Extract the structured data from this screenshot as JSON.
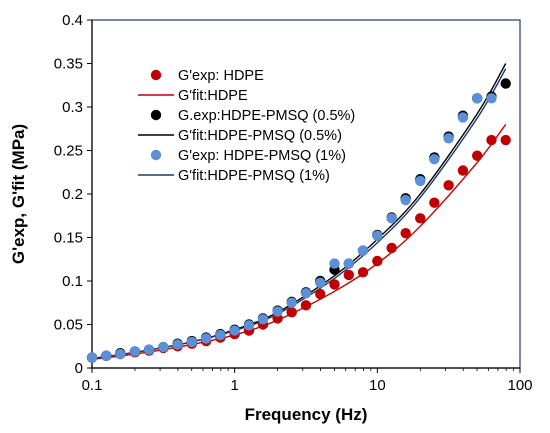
{
  "chart_data": {
    "type": "scatter",
    "title": "",
    "xlabel": "Frequency (Hz)",
    "ylabel": "G'exp, G'fit (MPa)",
    "xscale": "log",
    "xlim": [
      0.1,
      100
    ],
    "ylim": [
      0,
      0.4
    ],
    "x_ticks": [
      "0.1",
      "1",
      "10",
      "100"
    ],
    "y_ticks": [
      "0",
      "0.05",
      "0.1",
      "0.15",
      "0.2",
      "0.25",
      "0.3",
      "0.35",
      "0.4"
    ],
    "grid": false,
    "legend_position": "top-left",
    "series": [
      {
        "name": "G'exp: HDPE",
        "kind": "points",
        "color": "#C00000",
        "x": [
          0.1,
          0.126,
          0.158,
          0.2,
          0.251,
          0.316,
          0.398,
          0.501,
          0.631,
          0.794,
          1.0,
          1.26,
          1.58,
          2.0,
          2.51,
          3.16,
          3.98,
          5.01,
          6.31,
          7.94,
          10.0,
          12.6,
          15.8,
          20.0,
          25.1,
          31.6,
          39.8,
          50.1,
          63.1,
          79.4
        ],
        "y": [
          0.012,
          0.014,
          0.016,
          0.018,
          0.02,
          0.023,
          0.025,
          0.028,
          0.031,
          0.035,
          0.039,
          0.043,
          0.05,
          0.057,
          0.064,
          0.072,
          0.085,
          0.096,
          0.107,
          0.11,
          0.123,
          0.138,
          0.155,
          0.172,
          0.19,
          0.21,
          0.227,
          0.244,
          0.262,
          0.262
        ]
      },
      {
        "name": "G'fit:HDPE",
        "kind": "line",
        "color": "#C00000",
        "x": [
          0.1,
          0.2,
          0.5,
          1.0,
          2.0,
          5.0,
          10.0,
          20.0,
          50.0,
          79.4
        ],
        "y": [
          0.01,
          0.016,
          0.027,
          0.038,
          0.055,
          0.088,
          0.12,
          0.163,
          0.236,
          0.28
        ]
      },
      {
        "name": "G.exp:HDPE-PMSQ (0.5%)",
        "kind": "points",
        "color": "#000000",
        "x": [
          0.1,
          0.126,
          0.158,
          0.2,
          0.251,
          0.316,
          0.398,
          0.501,
          0.631,
          0.794,
          1.0,
          1.26,
          1.58,
          2.0,
          2.51,
          3.16,
          3.98,
          5.01,
          6.31,
          7.94,
          10.0,
          12.6,
          15.8,
          20.0,
          25.1,
          31.6,
          39.8,
          50.1,
          63.1,
          79.4
        ],
        "y": [
          0.012,
          0.014,
          0.017,
          0.019,
          0.021,
          0.024,
          0.028,
          0.031,
          0.035,
          0.039,
          0.044,
          0.05,
          0.057,
          0.066,
          0.076,
          0.087,
          0.1,
          0.113,
          0.12,
          0.135,
          0.153,
          0.173,
          0.195,
          0.217,
          0.242,
          0.266,
          0.29,
          0.31,
          0.312,
          0.327
        ]
      },
      {
        "name": "G'fit:HDPE-PMSQ (0.5%)",
        "kind": "line",
        "color": "#000000",
        "x": [
          0.1,
          0.2,
          0.5,
          1.0,
          2.0,
          5.0,
          10.0,
          20.0,
          50.0,
          79.4
        ],
        "y": [
          0.011,
          0.018,
          0.03,
          0.044,
          0.064,
          0.106,
          0.148,
          0.2,
          0.292,
          0.35
        ]
      },
      {
        "name": "G'exp: HDPE-PMSQ (1%)",
        "kind": "points",
        "color": "#5B8FD6",
        "x": [
          0.1,
          0.126,
          0.158,
          0.2,
          0.251,
          0.316,
          0.398,
          0.501,
          0.631,
          0.794,
          1.0,
          1.26,
          1.58,
          2.0,
          2.51,
          3.16,
          3.98,
          5.01,
          6.31,
          7.94,
          10.0,
          12.6,
          15.8,
          20.0,
          25.1,
          31.6,
          39.8,
          50.1,
          63.1
        ],
        "y": [
          0.012,
          0.014,
          0.016,
          0.019,
          0.021,
          0.024,
          0.027,
          0.03,
          0.034,
          0.038,
          0.043,
          0.049,
          0.056,
          0.065,
          0.075,
          0.086,
          0.098,
          0.12,
          0.12,
          0.135,
          0.152,
          0.172,
          0.193,
          0.215,
          0.24,
          0.264,
          0.288,
          0.31,
          0.31
        ]
      },
      {
        "name": "G'fit:HDPE-PMSQ (1%)",
        "kind": "line",
        "color": "#1F3A73",
        "x": [
          0.1,
          0.2,
          0.5,
          1.0,
          2.0,
          5.0,
          10.0,
          20.0,
          50.0,
          79.4
        ],
        "y": [
          0.011,
          0.018,
          0.03,
          0.043,
          0.062,
          0.103,
          0.144,
          0.196,
          0.287,
          0.344
        ]
      }
    ]
  }
}
